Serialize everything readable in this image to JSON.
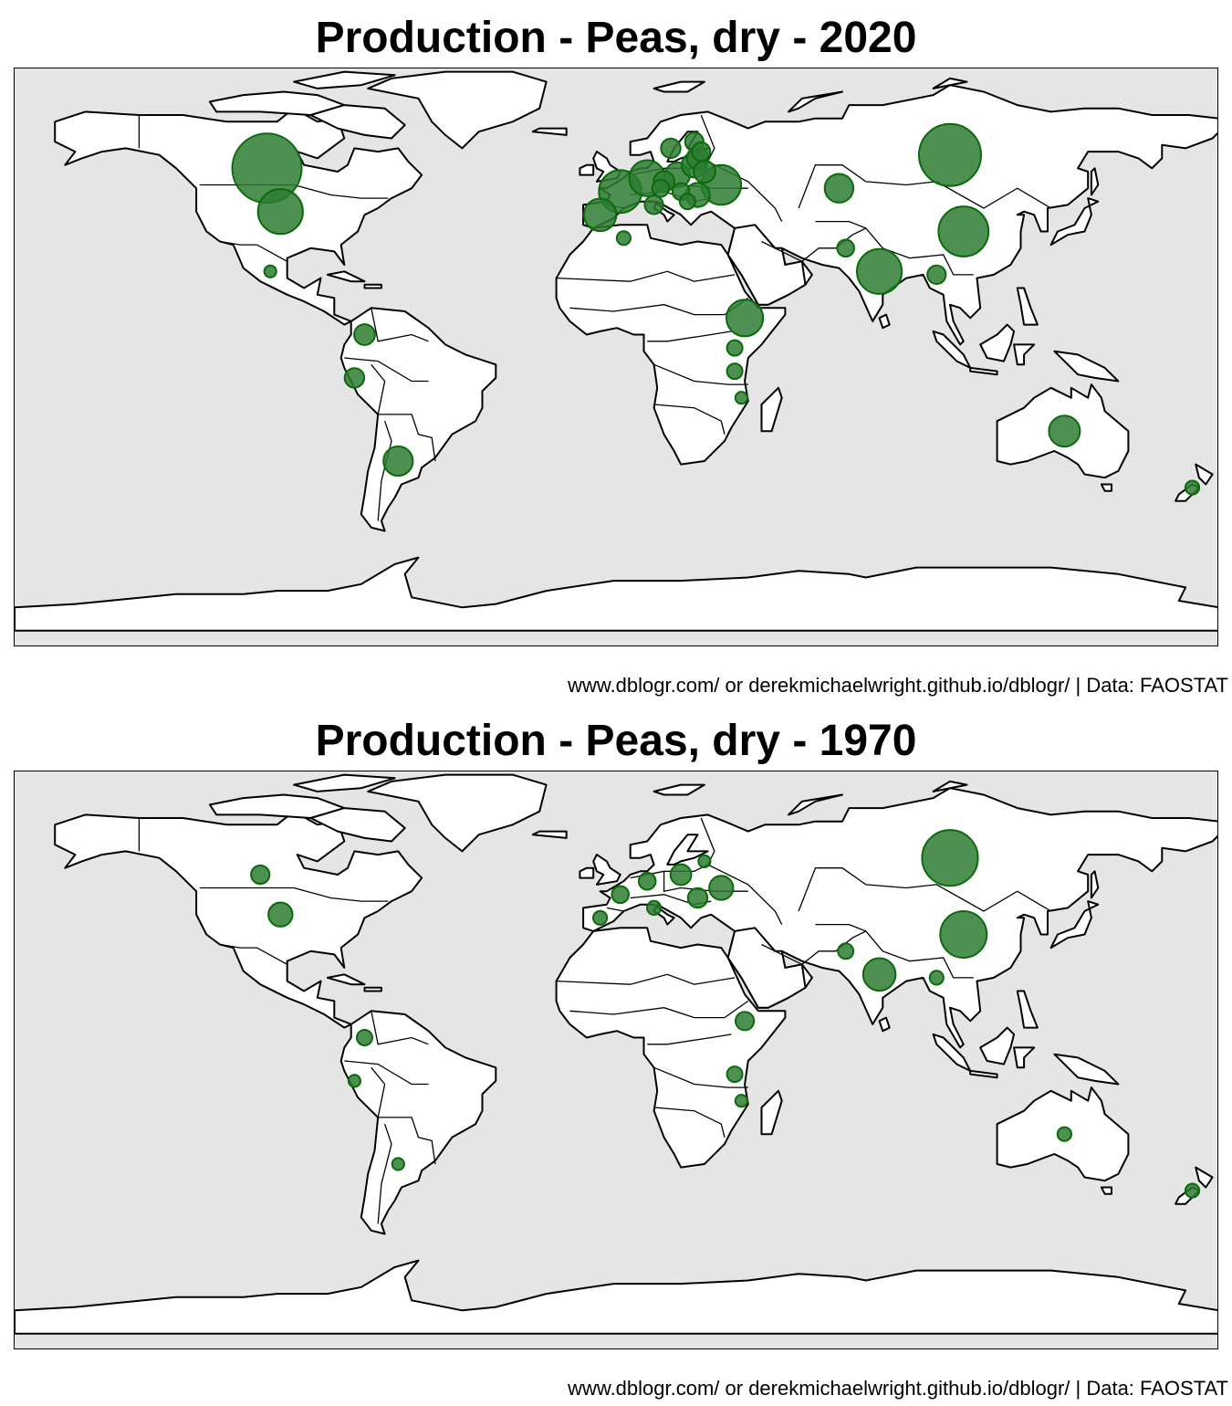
{
  "panels": [
    {
      "title": "Production - Peas, dry - 2020",
      "caption": "www.dblogr.com/ or derekmichaelwright.github.io/dblogr/ | Data: FAOSTAT"
    },
    {
      "title": "Production - Peas, dry - 1970",
      "caption": "www.dblogr.com/ or derekmichaelwright.github.io/dblogr/ | Data: FAOSTAT"
    }
  ],
  "colors": {
    "ocean": "#e5e5e5",
    "land": "#ffffff",
    "bubble_fill": "#2e7d32",
    "bubble_stroke": "#0b6b0b"
  },
  "chart_data": [
    {
      "type": "bubble-map",
      "year": 2020,
      "points": [
        {
          "lon": -103,
          "lat": 54,
          "size": 1.0
        },
        {
          "lon": -99,
          "lat": 41,
          "size": 0.42
        },
        {
          "lon": 100,
          "lat": 58,
          "size": 0.8
        },
        {
          "lon": 104,
          "lat": 35,
          "size": 0.52
        },
        {
          "lon": 79,
          "lat": 23,
          "size": 0.42
        },
        {
          "lon": 39,
          "lat": 9,
          "size": 0.28
        },
        {
          "lon": 2,
          "lat": 47,
          "size": 0.38
        },
        {
          "lon": 32,
          "lat": 49,
          "size": 0.33
        },
        {
          "lon": -4,
          "lat": 40,
          "size": 0.22
        },
        {
          "lon": 10,
          "lat": 51,
          "size": 0.27
        },
        {
          "lon": 134,
          "lat": -25,
          "size": 0.2
        },
        {
          "lon": -64,
          "lat": -34,
          "size": 0.18
        },
        {
          "lon": 67,
          "lat": 48,
          "size": 0.17
        },
        {
          "lon": 19,
          "lat": 52,
          "size": 0.13
        },
        {
          "lon": 24,
          "lat": 55,
          "size": 0.13
        },
        {
          "lon": 25,
          "lat": 57,
          "size": 0.1
        },
        {
          "lon": 27,
          "lat": 53,
          "size": 0.1
        },
        {
          "lon": 15,
          "lat": 50,
          "size": 0.09
        },
        {
          "lon": 17,
          "lat": 60,
          "size": 0.08
        },
        {
          "lon": 25,
          "lat": 46,
          "size": 0.12
        },
        {
          "lon": 24,
          "lat": 62,
          "size": 0.07
        },
        {
          "lon": 26,
          "lat": 59,
          "size": 0.07
        },
        {
          "lon": 14,
          "lat": 48,
          "size": 0.06
        },
        {
          "lon": 20,
          "lat": 47,
          "size": 0.06
        },
        {
          "lon": 12,
          "lat": 43,
          "size": 0.07
        },
        {
          "lon": 22,
          "lat": 44,
          "size": 0.05
        },
        {
          "lon": -74,
          "lat": 4,
          "size": 0.09
        },
        {
          "lon": -77,
          "lat": -9,
          "size": 0.08
        },
        {
          "lon": 69,
          "lat": 30,
          "size": 0.06
        },
        {
          "lon": 96,
          "lat": 22,
          "size": 0.07
        },
        {
          "lon": 36,
          "lat": 0,
          "size": 0.05
        },
        {
          "lon": 36,
          "lat": -7,
          "size": 0.05
        },
        {
          "lon": 172,
          "lat": -42,
          "size": 0.04
        },
        {
          "lon": 3,
          "lat": 33,
          "size": 0.04
        },
        {
          "lon": 38,
          "lat": -15,
          "size": 0.03
        },
        {
          "lon": -102,
          "lat": 23,
          "size": 0.03
        }
      ]
    },
    {
      "type": "bubble-map",
      "year": 1970,
      "points": [
        {
          "lon": 100,
          "lat": 58,
          "size": 0.65
        },
        {
          "lon": 104,
          "lat": 35,
          "size": 0.45
        },
        {
          "lon": 79,
          "lat": 23,
          "size": 0.22
        },
        {
          "lon": -99,
          "lat": 41,
          "size": 0.12
        },
        {
          "lon": 32,
          "lat": 49,
          "size": 0.12
        },
        {
          "lon": -105,
          "lat": 53,
          "size": 0.07
        },
        {
          "lon": 20,
          "lat": 53,
          "size": 0.09
        },
        {
          "lon": 25,
          "lat": 46,
          "size": 0.08
        },
        {
          "lon": 2,
          "lat": 47,
          "size": 0.06
        },
        {
          "lon": 10,
          "lat": 51,
          "size": 0.06
        },
        {
          "lon": 39,
          "lat": 9,
          "size": 0.07
        },
        {
          "lon": 69,
          "lat": 30,
          "size": 0.05
        },
        {
          "lon": 36,
          "lat": -7,
          "size": 0.05
        },
        {
          "lon": -74,
          "lat": 4,
          "size": 0.05
        },
        {
          "lon": 134,
          "lat": -25,
          "size": 0.04
        },
        {
          "lon": -64,
          "lat": -34,
          "size": 0.03
        },
        {
          "lon": 172,
          "lat": -42,
          "size": 0.04
        },
        {
          "lon": 96,
          "lat": 22,
          "size": 0.04
        },
        {
          "lon": -4,
          "lat": 40,
          "size": 0.04
        },
        {
          "lon": 12,
          "lat": 43,
          "size": 0.04
        },
        {
          "lon": 27,
          "lat": 57,
          "size": 0.03
        },
        {
          "lon": -77,
          "lat": -9,
          "size": 0.03
        },
        {
          "lon": 38,
          "lat": -15,
          "size": 0.03
        }
      ]
    }
  ]
}
